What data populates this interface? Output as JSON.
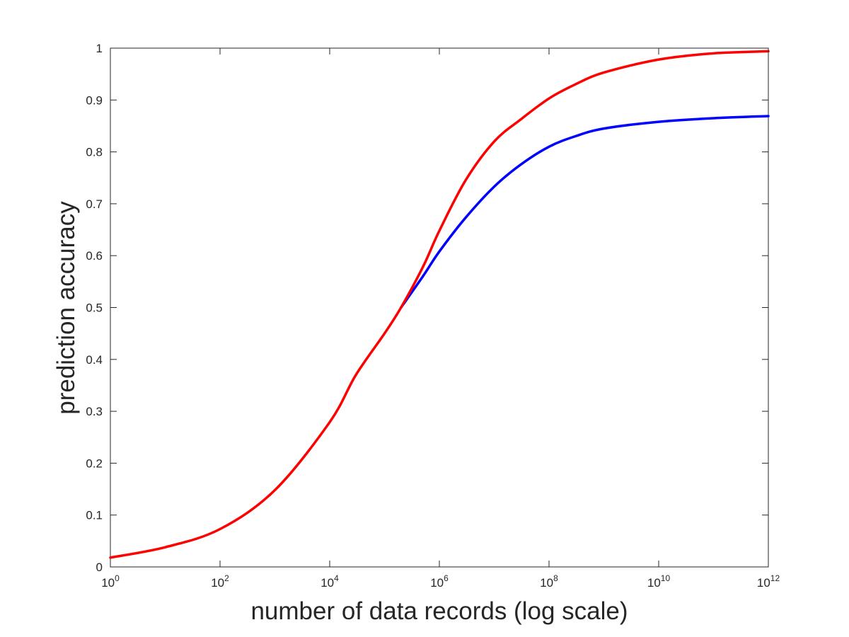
{
  "chart_data": {
    "type": "line",
    "title": "",
    "xlabel": "number of data records (log scale)",
    "ylabel": "prediction accuracy",
    "x_scale": "log",
    "xlim": [
      1,
      1000000000000
    ],
    "ylim": [
      0,
      1
    ],
    "grid": false,
    "legend": "none",
    "x_ticks": [
      {
        "value": 1,
        "base": "10",
        "exp": "0"
      },
      {
        "value": 100,
        "base": "10",
        "exp": "2"
      },
      {
        "value": 10000,
        "base": "10",
        "exp": "4"
      },
      {
        "value": 1000000,
        "base": "10",
        "exp": "6"
      },
      {
        "value": 100000000,
        "base": "10",
        "exp": "8"
      },
      {
        "value": 10000000000,
        "base": "10",
        "exp": "10"
      },
      {
        "value": 1000000000000,
        "base": "10",
        "exp": "12"
      }
    ],
    "y_ticks": [
      {
        "value": 0,
        "label": "0"
      },
      {
        "value": 0.1,
        "label": "0.1"
      },
      {
        "value": 0.2,
        "label": "0.2"
      },
      {
        "value": 0.3,
        "label": "0.3"
      },
      {
        "value": 0.4,
        "label": "0.4"
      },
      {
        "value": 0.5,
        "label": "0.5"
      },
      {
        "value": 0.6,
        "label": "0.6"
      },
      {
        "value": 0.7,
        "label": "0.7"
      },
      {
        "value": 0.8,
        "label": "0.8"
      },
      {
        "value": 0.9,
        "label": "0.9"
      },
      {
        "value": 1,
        "label": "1"
      }
    ],
    "series": [
      {
        "color": "#0000ff",
        "x": [
          200000,
          500000,
          1000000,
          3000000,
          10000000,
          30000000,
          100000000,
          300000000,
          1000000000,
          10000000000,
          100000000000,
          1000000000000
        ],
        "y": [
          0.5,
          0.56,
          0.608,
          0.673,
          0.733,
          0.775,
          0.81,
          0.83,
          0.845,
          0.858,
          0.865,
          0.869
        ]
      },
      {
        "color": "#ff0000",
        "x": [
          1,
          10,
          100,
          1000,
          10000,
          30000,
          100000,
          200000,
          500000,
          1000000,
          3000000,
          10000000,
          30000000,
          100000000,
          300000000,
          1000000000,
          10000000000,
          100000000000,
          1000000000000
        ],
        "y": [
          0.018,
          0.038,
          0.073,
          0.148,
          0.279,
          0.37,
          0.45,
          0.5,
          0.578,
          0.648,
          0.745,
          0.82,
          0.862,
          0.903,
          0.93,
          0.953,
          0.978,
          0.99,
          0.994
        ]
      }
    ]
  }
}
